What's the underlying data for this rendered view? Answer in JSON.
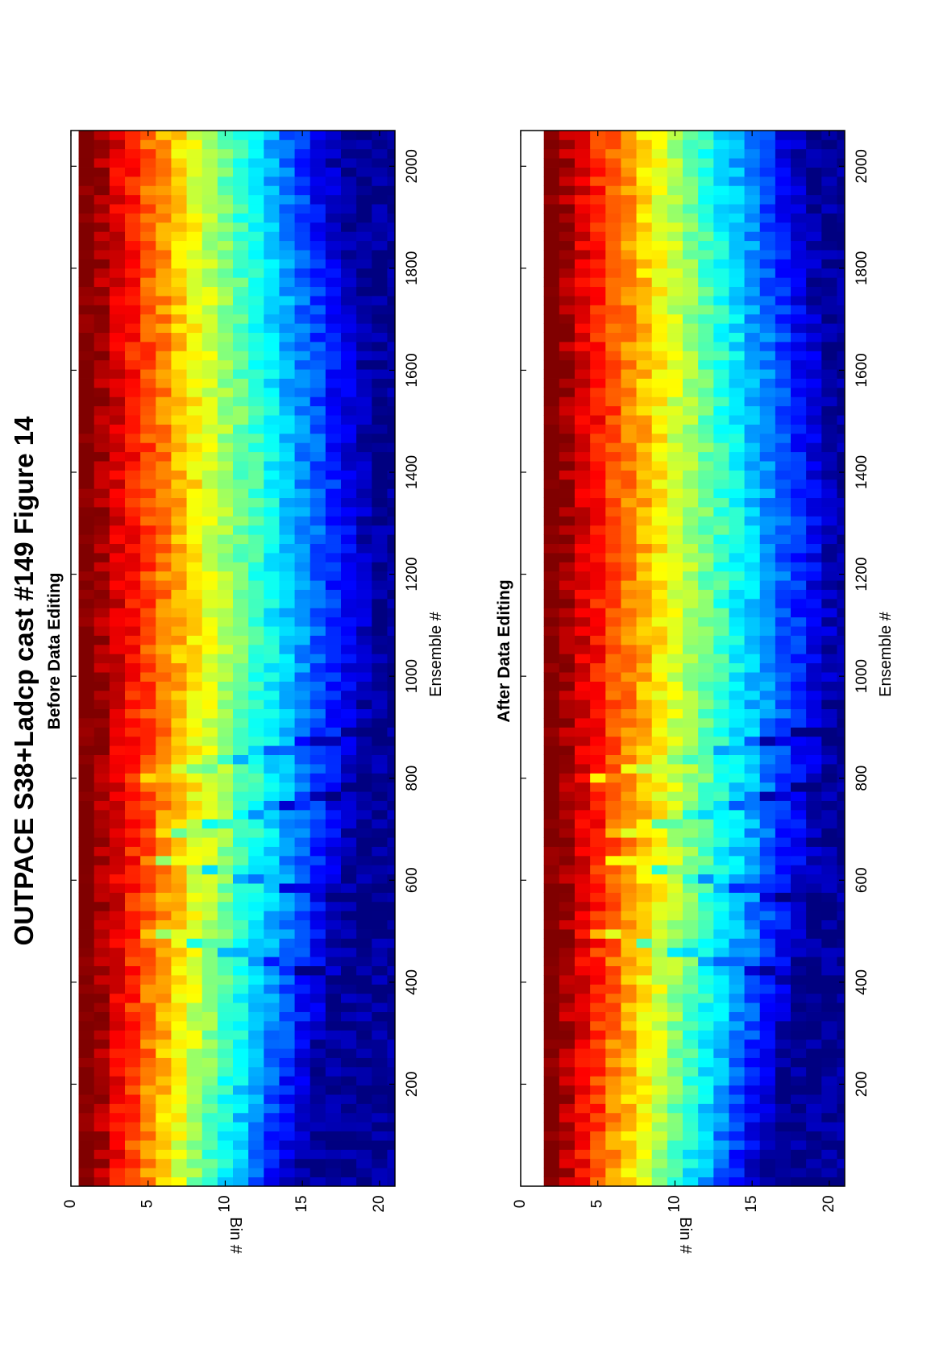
{
  "page": {
    "title": "OUTPACE S38+Ladcp cast #149  Figure 14"
  },
  "chart_data": [
    {
      "type": "heatmap",
      "title": "Before Data Editing",
      "xlabel": "Ensemble #",
      "ylabel": "Bin #",
      "xlim": [
        0,
        2070
      ],
      "ylim": [
        0,
        21
      ],
      "y_reversed": true,
      "xticks": [
        200,
        400,
        600,
        800,
        1000,
        1200,
        1400,
        1600,
        1800,
        2000
      ],
      "yticks": [
        0,
        5,
        10,
        15,
        20
      ],
      "colormap": "jet",
      "value_scale": "relative (0 = low, 1 = high)",
      "bins_with_data": [
        1,
        21
      ],
      "description_points": [
        {
          "ensemble": 100,
          "bin_profile_peak": 1,
          "decay_scale_bins": 8
        },
        {
          "ensemble": 450,
          "beam_minimum_depth_bin": 6
        },
        {
          "ensemble": 620,
          "beam_minimum_depth_bin": 7
        },
        {
          "ensemble": 760,
          "beam_minimum_depth_bin": 5
        },
        {
          "ensemble": 870,
          "beam_minimum_depth_bin": 14
        },
        {
          "ensemble": 2000,
          "bin_profile_peak": 1,
          "decay_scale_bins": 9
        }
      ]
    },
    {
      "type": "heatmap",
      "title": "After Data Editing",
      "xlabel": "Ensemble #",
      "ylabel": "Bin #",
      "xlim": [
        0,
        2070
      ],
      "ylim": [
        0,
        21
      ],
      "y_reversed": true,
      "xticks": [
        200,
        400,
        600,
        800,
        1000,
        1200,
        1400,
        1600,
        1800,
        2000
      ],
      "yticks": [
        0,
        5,
        10,
        15,
        20
      ],
      "colormap": "jet",
      "value_scale": "relative (0 = low, 1 = high)",
      "bins_with_data": [
        2,
        21
      ],
      "description_points": [
        {
          "ensemble": 100,
          "bin_profile_peak": 2,
          "decay_scale_bins": 8
        },
        {
          "ensemble": 450,
          "beam_minimum_depth_bin": 6
        },
        {
          "ensemble": 620,
          "beam_minimum_depth_bin": 7
        },
        {
          "ensemble": 760,
          "beam_minimum_depth_bin": 5
        },
        {
          "ensemble": 870,
          "beam_minimum_depth_bin": 14
        },
        {
          "ensemble": 2000,
          "bin_profile_peak": 2,
          "decay_scale_bins": 9
        }
      ]
    }
  ]
}
